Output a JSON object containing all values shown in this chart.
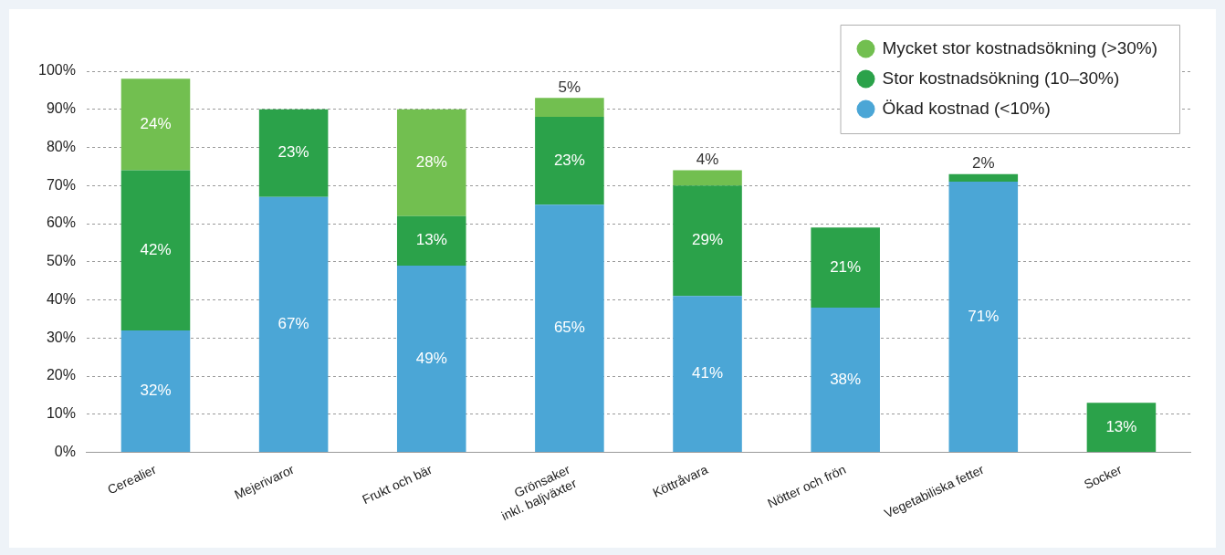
{
  "chart_data": {
    "type": "bar",
    "stacked": true,
    "categories": [
      "Cerealier",
      "Mejerivaror",
      "Frukt och bär",
      "Grönsaker\ninkl. baljväxter",
      "Köttråvara",
      "Nötter och frön",
      "Vegetabiliska fetter",
      "Socker"
    ],
    "series": [
      {
        "name": "Ökad kostnad (<10%)",
        "color": "#4ba6d6",
        "values": [
          32,
          67,
          49,
          65,
          41,
          38,
          71,
          null
        ],
        "value_labels": [
          "32%",
          "67%",
          "49%",
          "65%",
          "41%",
          "38%",
          "71%",
          null
        ]
      },
      {
        "name": "Stor kostnadsökning (10–30%)",
        "color": "#2ba24a",
        "values": [
          42,
          23,
          13,
          23,
          29,
          21,
          2,
          13
        ],
        "value_labels": [
          "42%",
          "23%",
          "13%",
          "23%",
          "29%",
          "21%",
          "2%",
          "13%"
        ]
      },
      {
        "name": "Mycket stor kostnadsökning (>30%)",
        "color": "#72bf50",
        "values": [
          24,
          null,
          28,
          5,
          4,
          null,
          null,
          null
        ],
        "value_labels": [
          "24%",
          null,
          "28%",
          "5%",
          "4%",
          null,
          null,
          null
        ]
      }
    ],
    "ylim": [
      0,
      100
    ],
    "yticks": [
      {
        "value": 0,
        "label": "0%"
      },
      {
        "value": 10,
        "label": "10%"
      },
      {
        "value": 20,
        "label": "20%"
      },
      {
        "value": 30,
        "label": "30%"
      },
      {
        "value": 40,
        "label": "40%"
      },
      {
        "value": 50,
        "label": "50%"
      },
      {
        "value": 60,
        "label": "60%"
      },
      {
        "value": 70,
        "label": "70%"
      },
      {
        "value": 80,
        "label": "80%"
      },
      {
        "value": 90,
        "label": "90%"
      },
      {
        "value": 100,
        "label": "100%"
      }
    ],
    "grid": "y",
    "legend": "top right"
  }
}
